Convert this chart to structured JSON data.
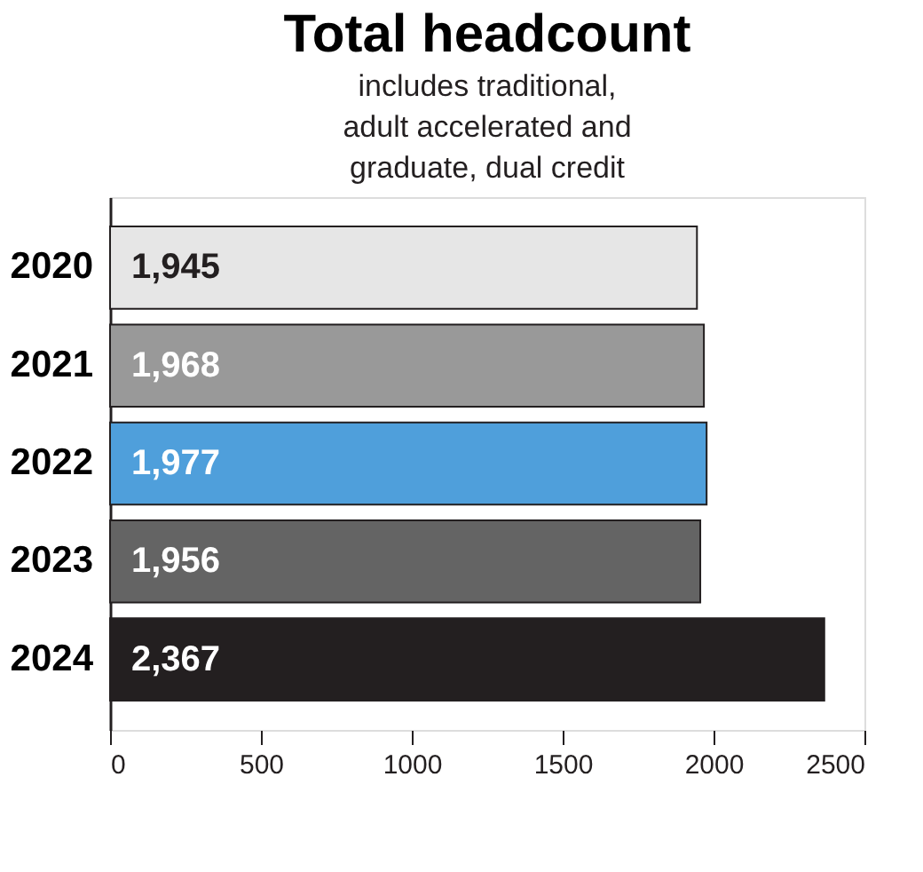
{
  "chart_data": {
    "type": "bar",
    "orientation": "horizontal",
    "title": "Total headcount",
    "subtitle": "includes traditional, adult accelerated and graduate, dual credit",
    "categories": [
      "2020",
      "2021",
      "2022",
      "2023",
      "2024"
    ],
    "values": [
      1945,
      1968,
      1977,
      1956,
      2367
    ],
    "colors": [
      "#e6e6e6",
      "#999999",
      "#4f9fdb",
      "#646464",
      "#231f20"
    ],
    "xlim": [
      0,
      2500
    ],
    "xticks": [
      0,
      500,
      1000,
      1500,
      2000,
      2500
    ],
    "value_labels": [
      "1,945",
      "1,968",
      "1,977",
      "1,956",
      "2,367"
    ],
    "grid": false
  }
}
